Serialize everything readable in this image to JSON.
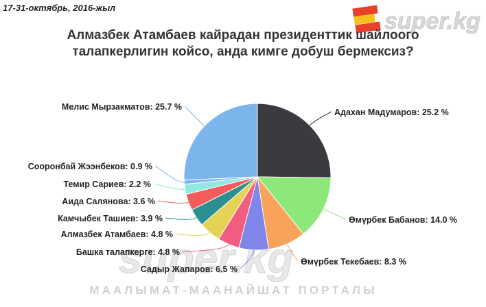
{
  "header": {
    "date": "17-31-октябрь, 2016-жыл",
    "logo_text": "super.kg"
  },
  "watermark": {
    "logo_text": "super.kg",
    "tagline": "МААЛЫМАТ-МААНАЙШАТ ПОРТАЛЫ"
  },
  "chart_data": {
    "type": "pie",
    "title_lines": [
      "Алмазбек Атамбаев кайрадан президенттик шайлоого",
      "талапкерлигин койсо, анда кимге добуш бермексиз?"
    ],
    "unit": "%",
    "slices": [
      {
        "label": "Адахан Мадумаров",
        "value": 25.2,
        "color": "#3a3a3f"
      },
      {
        "label": "Өмүрбек Бабанов",
        "value": 14.0,
        "color": "#8de87a"
      },
      {
        "label": "Өмүрбек Текебаев",
        "value": 8.3,
        "color": "#f7a35c"
      },
      {
        "label": "Садыр Жапаров",
        "value": 6.5,
        "color": "#8085e9"
      },
      {
        "label": "Башка талапкерге",
        "value": 4.8,
        "color": "#f15c80"
      },
      {
        "label": "Алмазбек Атамбаев",
        "value": 4.8,
        "color": "#e4d354"
      },
      {
        "label": "Камчыбек Ташиев",
        "value": 3.9,
        "color": "#2b908f"
      },
      {
        "label": "Аида Салянова",
        "value": 3.6,
        "color": "#f45b5b"
      },
      {
        "label": "Темир Сариев",
        "value": 2.2,
        "color": "#91e8e1"
      },
      {
        "label": "Сооронбай Жээнбеков",
        "value": 0.9,
        "color": "#7cb5ec"
      },
      {
        "label": "Мелис Мырзакматов",
        "value": 25.7,
        "color": "#7cb5ec"
      }
    ]
  }
}
